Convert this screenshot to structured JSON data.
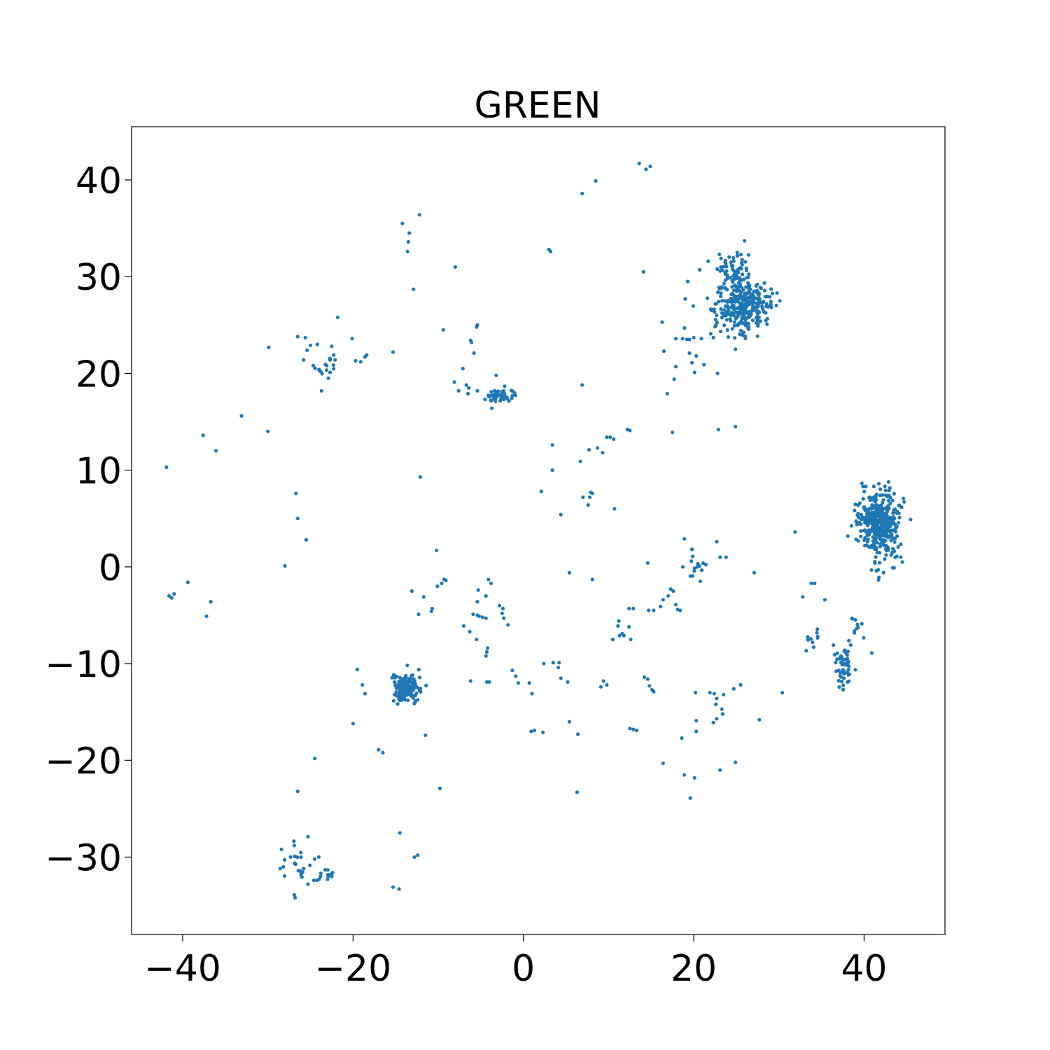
{
  "chart_data": {
    "type": "scatter",
    "title": "GREEN",
    "xlabel": "",
    "ylabel": "",
    "xlim": [
      -46,
      49.5
    ],
    "ylim": [
      -38,
      45.5
    ],
    "xticks": [
      -40,
      -20,
      0,
      20,
      40
    ],
    "yticks": [
      -30,
      -20,
      -10,
      0,
      10,
      20,
      30,
      40
    ],
    "xtick_labels": [
      "−40",
      "−20",
      "0",
      "20",
      "40"
    ],
    "ytick_labels": [
      "−30",
      "−20",
      "−10",
      "0",
      "10",
      "20",
      "30",
      "40"
    ],
    "grid": false,
    "legend": "none",
    "marker_color": "#1f77b4",
    "clusters": [
      {
        "cx": 25.8,
        "cy": 27.0,
        "sx": 1.6,
        "sy": 1.3,
        "n": 320
      },
      {
        "cx": 24.9,
        "cy": 30.3,
        "sx": 0.8,
        "sy": 1.0,
        "n": 70
      },
      {
        "cx": 41.7,
        "cy": 4.8,
        "sx": 1.2,
        "sy": 1.4,
        "n": 380
      },
      {
        "cx": 42.4,
        "cy": 1.2,
        "sx": 0.8,
        "sy": 1.0,
        "n": 45
      },
      {
        "cx": -13.7,
        "cy": -12.5,
        "sx": 0.9,
        "sy": 0.9,
        "n": 150
      },
      {
        "cx": 37.6,
        "cy": -10.3,
        "sx": 0.6,
        "sy": 0.9,
        "n": 60
      },
      {
        "cx": -2.6,
        "cy": 17.7,
        "sx": 0.9,
        "sy": 0.4,
        "n": 45
      },
      {
        "cx": -23.6,
        "cy": 20.7,
        "sx": 0.7,
        "sy": 0.8,
        "n": 12
      },
      {
        "cx": -26.7,
        "cy": -30.8,
        "sx": 0.7,
        "sy": 1.0,
        "n": 20
      },
      {
        "cx": -23.4,
        "cy": -31.8,
        "sx": 0.6,
        "sy": 0.5,
        "n": 9
      },
      {
        "cx": 20.4,
        "cy": 0.0,
        "sx": 0.6,
        "sy": 0.7,
        "n": 14
      },
      {
        "cx": 34.0,
        "cy": -7.6,
        "sx": 0.5,
        "sy": 0.4,
        "n": 10
      },
      {
        "cx": 39.0,
        "cy": -6.6,
        "sx": 0.6,
        "sy": 0.7,
        "n": 10
      }
    ],
    "points": [
      [
        13.6,
        41.7
      ],
      [
        14.4,
        41.1
      ],
      [
        14.9,
        41.4
      ],
      [
        6.9,
        38.6
      ],
      [
        8.5,
        39.9
      ],
      [
        -14.2,
        35.5
      ],
      [
        -12.2,
        36.4
      ],
      [
        -13.4,
        34.5
      ],
      [
        -13.5,
        33.6
      ],
      [
        -13.6,
        32.6
      ],
      [
        3.0,
        32.8
      ],
      [
        3.2,
        32.6
      ],
      [
        -8.0,
        31.0
      ],
      [
        14.1,
        30.5
      ],
      [
        -12.9,
        28.7
      ],
      [
        -21.8,
        25.8
      ],
      [
        -5.4,
        25.0
      ],
      [
        -5.5,
        24.8
      ],
      [
        -9.4,
        24.5
      ],
      [
        -6.2,
        23.4
      ],
      [
        -6.1,
        23.2
      ],
      [
        -5.8,
        22.1
      ],
      [
        -26.5,
        23.8
      ],
      [
        -25.6,
        23.7
      ],
      [
        -25.0,
        22.9
      ],
      [
        -25.4,
        22.4
      ],
      [
        -24.2,
        23.0
      ],
      [
        -25.8,
        21.4
      ],
      [
        -20.1,
        23.6
      ],
      [
        -29.9,
        22.7
      ],
      [
        -15.3,
        22.2
      ],
      [
        -19.7,
        21.3
      ],
      [
        -19.1,
        21.2
      ],
      [
        -18.6,
        21.7
      ],
      [
        -18.4,
        21.9
      ],
      [
        -24.0,
        20.4
      ],
      [
        -23.8,
        20.2
      ],
      [
        -22.7,
        21.4
      ],
      [
        -22.1,
        21.4
      ],
      [
        -22.7,
        20.1
      ],
      [
        -22.9,
        19.5
      ],
      [
        -23.7,
        18.2
      ],
      [
        -7.1,
        20.5
      ],
      [
        -8.1,
        19.1
      ],
      [
        -7.6,
        18.2
      ],
      [
        -6.7,
        18.8
      ],
      [
        -6.4,
        18.5
      ],
      [
        -6.5,
        17.9
      ],
      [
        -5.4,
        18.2
      ],
      [
        -3.7,
        16.4
      ],
      [
        -3.2,
        19.8
      ],
      [
        -2.7,
        17.2
      ],
      [
        6.9,
        18.8
      ],
      [
        16.3,
        25.3
      ],
      [
        17.9,
        23.6
      ],
      [
        18.7,
        23.6
      ],
      [
        16.5,
        22.3
      ],
      [
        19.2,
        23.5
      ],
      [
        19.5,
        23.5
      ],
      [
        20.0,
        23.7
      ],
      [
        18.9,
        24.7
      ],
      [
        19.5,
        22.1
      ],
      [
        19.8,
        21.1
      ],
      [
        20.3,
        21.8
      ],
      [
        20.1,
        20.1
      ],
      [
        21.2,
        20.9
      ],
      [
        17.9,
        20.7
      ],
      [
        17.7,
        19.4
      ],
      [
        16.9,
        17.9
      ],
      [
        22.8,
        20.0
      ],
      [
        20.9,
        23.6
      ],
      [
        22.0,
        24.1
      ],
      [
        22.3,
        23.7
      ],
      [
        24.9,
        22.5
      ],
      [
        19.0,
        27.7
      ],
      [
        19.3,
        29.5
      ],
      [
        20.7,
        30.7
      ],
      [
        21.7,
        31.6
      ],
      [
        22.3,
        26.6
      ],
      [
        23.0,
        32.3
      ],
      [
        22.9,
        14.2
      ],
      [
        24.9,
        14.5
      ],
      [
        17.5,
        13.9
      ],
      [
        -33.1,
        15.6
      ],
      [
        -30.0,
        14.0
      ],
      [
        -37.6,
        13.6
      ],
      [
        -36.1,
        12.0
      ],
      [
        -41.9,
        10.3
      ],
      [
        3.4,
        12.6
      ],
      [
        7.7,
        12.1
      ],
      [
        9.3,
        11.8
      ],
      [
        6.7,
        10.9
      ],
      [
        3.4,
        10.0
      ],
      [
        8.7,
        12.3
      ],
      [
        9.8,
        13.4
      ],
      [
        10.2,
        13.4
      ],
      [
        10.6,
        13.2
      ],
      [
        12.2,
        14.2
      ],
      [
        12.5,
        14.1
      ],
      [
        2.1,
        7.8
      ],
      [
        7.9,
        7.7
      ],
      [
        8.1,
        7.6
      ],
      [
        7.0,
        7.2
      ],
      [
        7.8,
        7.2
      ],
      [
        7.6,
        6.4
      ],
      [
        10.7,
        6.0
      ],
      [
        4.4,
        5.4
      ],
      [
        -26.7,
        7.6
      ],
      [
        -26.5,
        5.0
      ],
      [
        -25.5,
        2.8
      ],
      [
        -12.1,
        9.3
      ],
      [
        -28.0,
        0.1
      ],
      [
        -10.2,
        1.7
      ],
      [
        -41.6,
        -3.0
      ],
      [
        -41.3,
        -3.2
      ],
      [
        -41.0,
        -2.8
      ],
      [
        -39.4,
        -1.6
      ],
      [
        -36.7,
        -3.6
      ],
      [
        -37.2,
        -5.1
      ],
      [
        -13.1,
        -2.5
      ],
      [
        -9.3,
        -1.3
      ],
      [
        -9.1,
        -1.4
      ],
      [
        -9.6,
        -1.7
      ],
      [
        -10.1,
        -2.0
      ],
      [
        -11.7,
        -3.1
      ],
      [
        -10.7,
        -4.3
      ],
      [
        -10.8,
        -4.6
      ],
      [
        -12.3,
        -4.9
      ],
      [
        -4.1,
        -1.3
      ],
      [
        -3.8,
        -1.7
      ],
      [
        -5.3,
        -2.4
      ],
      [
        -4.4,
        -3.0
      ],
      [
        -5.4,
        -3.6
      ],
      [
        -2.8,
        -4.0
      ],
      [
        -2.4,
        -4.3
      ],
      [
        -2.5,
        -4.8
      ],
      [
        -5.9,
        -4.9
      ],
      [
        -5.4,
        -5.0
      ],
      [
        -5.2,
        -5.1
      ],
      [
        -4.8,
        -5.2
      ],
      [
        -4.4,
        -5.3
      ],
      [
        -2.3,
        -5.3
      ],
      [
        -1.8,
        -6.0
      ],
      [
        -7.0,
        -6.1
      ],
      [
        -6.3,
        -6.7
      ],
      [
        -5.5,
        -7.5
      ],
      [
        -4.2,
        -8.4
      ],
      [
        -4.3,
        -8.8
      ],
      [
        -4.4,
        -9.2
      ],
      [
        5.4,
        -0.6
      ],
      [
        8.1,
        -1.3
      ],
      [
        14.6,
        0.4
      ],
      [
        22.7,
        2.6
      ],
      [
        23.1,
        1.0
      ],
      [
        23.8,
        1.0
      ],
      [
        27.1,
        -0.6
      ],
      [
        18.9,
        2.9
      ],
      [
        19.8,
        1.8
      ],
      [
        17.3,
        -2.3
      ],
      [
        17.6,
        -2.5
      ],
      [
        17.0,
        -3.0
      ],
      [
        16.4,
        -3.4
      ],
      [
        16.1,
        -4.1
      ],
      [
        15.3,
        -4.5
      ],
      [
        14.7,
        -4.5
      ],
      [
        17.9,
        -3.9
      ],
      [
        18.1,
        -4.4
      ],
      [
        18.4,
        -4.5
      ],
      [
        12.4,
        -4.3
      ],
      [
        12.9,
        -4.3
      ],
      [
        11.2,
        -5.6
      ],
      [
        11.1,
        -6.1
      ],
      [
        12.4,
        -6.2
      ],
      [
        11.6,
        -6.9
      ],
      [
        11.3,
        -7.1
      ],
      [
        11.8,
        -7.1
      ],
      [
        10.5,
        -7.5
      ],
      [
        12.6,
        -7.5
      ],
      [
        31.9,
        3.6
      ],
      [
        32.8,
        -3.1
      ],
      [
        33.8,
        -1.7
      ],
      [
        34.2,
        -1.7
      ],
      [
        35.4,
        -3.4
      ],
      [
        40.9,
        -8.9
      ],
      [
        -1.3,
        -10.7
      ],
      [
        -0.9,
        -11.3
      ],
      [
        -0.6,
        -12.0
      ],
      [
        2.4,
        -10.0
      ],
      [
        3.5,
        -9.9
      ],
      [
        4.2,
        -9.9
      ],
      [
        4.1,
        -10.4
      ],
      [
        5.2,
        -11.9
      ],
      [
        4.4,
        -11.5
      ],
      [
        0.7,
        -12.0
      ],
      [
        1.0,
        -13.1
      ],
      [
        -6.2,
        -11.8
      ],
      [
        -4.3,
        -11.9
      ],
      [
        -4.0,
        -11.9
      ],
      [
        9.1,
        -12.4
      ],
      [
        9.4,
        -11.8
      ],
      [
        9.8,
        -12.2
      ],
      [
        14.2,
        -11.4
      ],
      [
        14.6,
        -11.6
      ],
      [
        14.8,
        -12.3
      ],
      [
        15.1,
        -12.7
      ],
      [
        15.3,
        -12.9
      ],
      [
        20.2,
        -13.0
      ],
      [
        21.9,
        -13.0
      ],
      [
        22.4,
        -13.1
      ],
      [
        22.7,
        -13.6
      ],
      [
        23.5,
        -13.2
      ],
      [
        22.6,
        -14.2
      ],
      [
        23.3,
        -14.7
      ],
      [
        24.7,
        -12.6
      ],
      [
        25.5,
        -12.2
      ],
      [
        30.4,
        -13.0
      ],
      [
        27.7,
        -15.8
      ],
      [
        23.4,
        -15.2
      ],
      [
        22.7,
        -15.7
      ],
      [
        22.3,
        -16.1
      ],
      [
        20.3,
        -15.9
      ],
      [
        20.3,
        -17.0
      ],
      [
        18.6,
        -17.7
      ],
      [
        0.9,
        -17.0
      ],
      [
        1.3,
        -16.9
      ],
      [
        2.3,
        -17.1
      ],
      [
        5.4,
        -16.0
      ],
      [
        6.4,
        -17.3
      ],
      [
        12.5,
        -16.7
      ],
      [
        12.9,
        -16.8
      ],
      [
        13.3,
        -16.9
      ],
      [
        16.4,
        -20.3
      ],
      [
        18.9,
        -21.5
      ],
      [
        20.1,
        -21.8
      ],
      [
        23.1,
        -21.0
      ],
      [
        24.9,
        -20.2
      ],
      [
        19.6,
        -23.9
      ],
      [
        6.3,
        -23.3
      ],
      [
        -19.5,
        -10.6
      ],
      [
        -18.9,
        -12.2
      ],
      [
        -18.6,
        -13.1
      ],
      [
        -20.0,
        -16.2
      ],
      [
        -17.0,
        -18.9
      ],
      [
        -16.5,
        -19.2
      ],
      [
        -11.5,
        -17.4
      ],
      [
        -24.5,
        -19.8
      ],
      [
        -26.5,
        -23.2
      ],
      [
        -9.8,
        -22.9
      ],
      [
        -14.5,
        -27.5
      ],
      [
        -12.8,
        -30.0
      ],
      [
        -12.4,
        -29.8
      ],
      [
        -15.3,
        -33.1
      ],
      [
        -14.6,
        -33.3
      ],
      [
        -26.9,
        -33.9
      ],
      [
        -26.8,
        -34.2
      ],
      [
        -26.9,
        -28.8
      ],
      [
        -28.4,
        -29.2
      ],
      [
        -28.2,
        -31.0
      ],
      [
        -25.8,
        -31.2
      ],
      [
        -24.5,
        -30.2
      ],
      [
        -25.3,
        -32.8
      ],
      [
        -24.6,
        -32.4
      ],
      [
        -24.0,
        -32.3
      ],
      [
        -23.0,
        -32.3
      ],
      [
        -22.5,
        -32.0
      ]
    ]
  }
}
